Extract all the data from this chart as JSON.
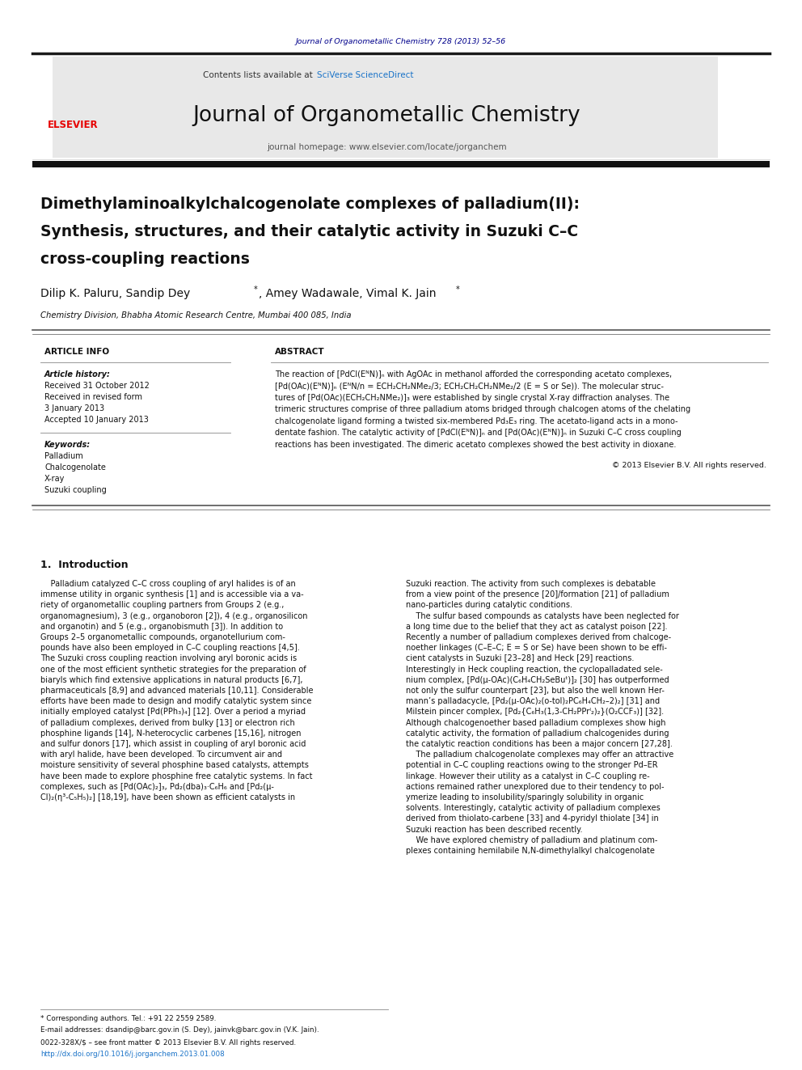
{
  "page_width": 9.92,
  "page_height": 13.23,
  "background_color": "#ffffff",
  "journal_ref": "Journal of Organometallic Chemistry 728 (2013) 52–56",
  "journal_ref_color": "#00008B",
  "contents_text": "Contents lists available at ",
  "sciverse_text": "SciVerse ScienceDirect",
  "sciverse_color": "#1a73c8",
  "journal_name": "Journal of Organometallic Chemistry",
  "homepage_text": "journal homepage: www.elsevier.com/locate/jorganchem",
  "header_bg": "#e8e8e8",
  "thick_bar_color": "#1a1a1a",
  "paper_title_line1": "Dimethylaminoalkylchalcogenolate complexes of palladium(II):",
  "paper_title_line2": "Synthesis, structures, and their catalytic activity in Suzuki C–C",
  "paper_title_line3": "cross-coupling reactions",
  "authors": "Dilip K. Paluru, Sandip Dey*, Amey Wadawale, Vimal K. Jain*",
  "affiliation": "Chemistry Division, Bhabha Atomic Research Centre, Mumbai 400 085, India",
  "article_info_header": "ARTICLE INFO",
  "abstract_header": "ABSTRACT",
  "article_history_label": "Article history:",
  "received1": "Received 31 October 2012",
  "received2": "Received in revised form",
  "date2": "3 January 2013",
  "accepted": "Accepted 10 January 2013",
  "keywords_label": "Keywords:",
  "keyword1": "Palladium",
  "keyword2": "Chalcogenolate",
  "keyword3": "X-ray",
  "keyword4": "Suzuki coupling",
  "copyright": "© 2013 Elsevier B.V. All rights reserved.",
  "intro_heading": "1.  Introduction",
  "footer_text1": "* Corresponding authors. Tel.: +91 22 2559 2589.",
  "footer_text2": "E-mail addresses: dsandip@barc.gov.in (S. Dey), jainvk@barc.gov.in (V.K. Jain).",
  "footer_text3": "0022-328X/$ – see front matter © 2013 Elsevier B.V. All rights reserved.",
  "footer_text4": "http://dx.doi.org/10.1016/j.jorganchem.2013.01.008",
  "abstract_lines": [
    "The reaction of [PdCl(EᴺN)]ₙ with AgOAc in methanol afforded the corresponding acetato complexes,",
    "[Pd(OAc)(EᴺN)]ₙ (EᴺN/n = ECH₂CH₂NMe₂/3; ECH₂CH₂CH₂NMe₂/2 (E = S or Se)). The molecular struc-",
    "tures of [Pd(OAc)(ECH₂CH₂NMe₂)]₃ were established by single crystal X-ray diffraction analyses. The",
    "trimeric structures comprise of three palladium atoms bridged through chalcogen atoms of the chelating",
    "chalcogenolate ligand forming a twisted six-membered Pd₃E₃ ring. The acetato-ligand acts in a mono-",
    "dentate fashion. The catalytic activity of [PdCl(EᴺN)]ₙ and [Pd(OAc)(EᴺN)]ₙ in Suzuki C–C cross coupling",
    "reactions has been investigated. The dimeric acetato complexes showed the best activity in dioxane."
  ],
  "col1_lines": [
    "    Palladium catalyzed C–C cross coupling of aryl halides is of an",
    "immense utility in organic synthesis [1] and is accessible via a va-",
    "riety of organometallic coupling partners from Groups 2 (e.g.,",
    "organomagnesium), 3 (e.g., organoboron [2]), 4 (e.g., organosilicon",
    "and organotin) and 5 (e.g., organobismuth [3]). In addition to",
    "Groups 2–5 organometallic compounds, organotellurium com-",
    "pounds have also been employed in C–C coupling reactions [4,5].",
    "The Suzuki cross coupling reaction involving aryl boronic acids is",
    "one of the most efficient synthetic strategies for the preparation of",
    "biaryls which find extensive applications in natural products [6,7],",
    "pharmaceuticals [8,9] and advanced materials [10,11]. Considerable",
    "efforts have been made to design and modify catalytic system since",
    "initially employed catalyst [Pd(PPh₃)₄] [12]. Over a period a myriad",
    "of palladium complexes, derived from bulky [13] or electron rich",
    "phosphine ligands [14], N-heterocyclic carbenes [15,16], nitrogen",
    "and sulfur donors [17], which assist in coupling of aryl boronic acid",
    "with aryl halide, have been developed. To circumvent air and",
    "moisture sensitivity of several phosphine based catalysts, attempts",
    "have been made to explore phosphine free catalytic systems. In fact",
    "complexes, such as [Pd(OAc)₂]₃, Pd₂(dba)₃·C₆H₆ and [Pd₂(μ-",
    "Cl)₂(η³-C₅H₅)₂] [18,19], have been shown as efficient catalysts in"
  ],
  "col2_lines": [
    "Suzuki reaction. The activity from such complexes is debatable",
    "from a view point of the presence [20]/formation [21] of palladium",
    "nano-particles during catalytic conditions.",
    "    The sulfur based compounds as catalysts have been neglected for",
    "a long time due to the belief that they act as catalyst poison [22].",
    "Recently a number of palladium complexes derived from chalcoge-",
    "noether linkages (C–E–C; E = S or Se) have been shown to be effi-",
    "cient catalysts in Suzuki [23–28] and Heck [29] reactions.",
    "Interestingly in Heck coupling reaction, the cyclopalladated sele-",
    "nium complex, [Pd(μ-OAc)(C₆H₄CH₂SeBuᵗ)]₂ [30] has outperformed",
    "not only the sulfur counterpart [23], but also the well known Her-",
    "mann’s palladacycle, [Pd₂(μ-OAc)₂(o-tol)₂PC₆H₄CH₂–2)₂] [31] and",
    "Milstein pincer complex, [Pd₂{C₆H₃(1,3-CH₂PPrᴵ₂)₂}(O₂CCF₃)] [32].",
    "Although chalcogenoether based palladium complexes show high",
    "catalytic activity, the formation of palladium chalcogenides during",
    "the catalytic reaction conditions has been a major concern [27,28].",
    "    The palladium chalcogenolate complexes may offer an attractive",
    "potential in C–C coupling reactions owing to the stronger Pd–ER",
    "linkage. However their utility as a catalyst in C–C coupling re-",
    "actions remained rather unexplored due to their tendency to pol-",
    "ymerize leading to insolubility/sparingly solubility in organic",
    "solvents. Interestingly, catalytic activity of palladium complexes",
    "derived from thiolato-carbene [33] and 4-pyridyl thiolate [34] in",
    "Suzuki reaction has been described recently.",
    "    We have explored chemistry of palladium and platinum com-",
    "plexes containing hemilabile N,N-dimethylalkyl chalcogenolate"
  ]
}
